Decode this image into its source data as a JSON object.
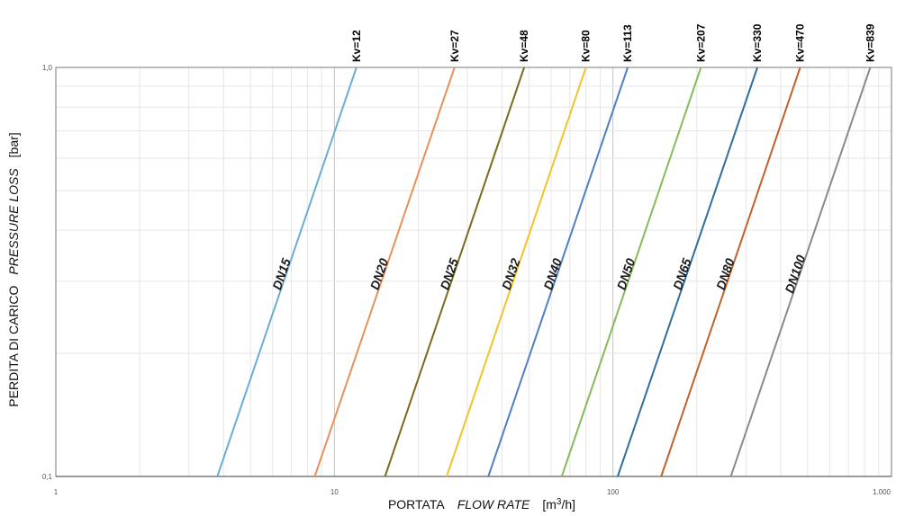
{
  "chart_data": {
    "type": "line",
    "title": "",
    "x_scale": "log",
    "y_scale": "log",
    "xlim": [
      1,
      1000
    ],
    "ylim": [
      0.1,
      1.0
    ],
    "grid": true,
    "x_ticks": [
      {
        "value": 1,
        "label": "1"
      },
      {
        "value": 10,
        "label": "10"
      },
      {
        "value": 100,
        "label": "100"
      },
      {
        "value": 1000,
        "label": "1.000"
      }
    ],
    "y_ticks": [
      {
        "value": 0.1,
        "label": "0,1"
      },
      {
        "value": 1.0,
        "label": "1,0"
      }
    ],
    "xlabel": {
      "prefix": "PORTATA",
      "italic": "FLOW RATE",
      "unit_pre": "[m",
      "unit_sup": "3",
      "unit_post": "/h]"
    },
    "ylabel": {
      "prefix": "PERDITA DI CARICO",
      "italic": "PRESSURE LOSS",
      "unit": "[bar]"
    },
    "series": [
      {
        "name": "DN15",
        "kv_label": "Kv=12",
        "kv": 12,
        "color": "#6aaed6",
        "points": [
          [
            3.8,
            0.1
          ],
          [
            12,
            1.0
          ]
        ]
      },
      {
        "name": "DN20",
        "kv_label": "Kv=27",
        "kv": 27,
        "color": "#e8915a",
        "points": [
          [
            8.5,
            0.1
          ],
          [
            27,
            1.0
          ]
        ]
      },
      {
        "name": "DN25",
        "kv_label": "Kv=48",
        "kv": 48,
        "color": "#7a6a1e",
        "points": [
          [
            15.2,
            0.1
          ],
          [
            48,
            1.0
          ]
        ]
      },
      {
        "name": "DN32",
        "kv_label": "Kv=80",
        "kv": 80,
        "color": "#f2c42a",
        "points": [
          [
            25.3,
            0.1
          ],
          [
            80,
            1.0
          ]
        ]
      },
      {
        "name": "DN40",
        "kv_label": "Kv=113",
        "kv": 113,
        "color": "#4f7fc4",
        "points": [
          [
            35.7,
            0.1
          ],
          [
            113,
            1.0
          ]
        ]
      },
      {
        "name": "DN50",
        "kv_label": "Kv=207",
        "kv": 207,
        "color": "#86bb5a",
        "points": [
          [
            65.5,
            0.1
          ],
          [
            207,
            1.0
          ]
        ]
      },
      {
        "name": "DN65",
        "kv_label": "Kv=330",
        "kv": 330,
        "color": "#2f6e9e",
        "points": [
          [
            104,
            0.1
          ],
          [
            330,
            1.0
          ]
        ]
      },
      {
        "name": "DN80",
        "kv_label": "Kv=470",
        "kv": 470,
        "color": "#c0622a",
        "points": [
          [
            149,
            0.1
          ],
          [
            470,
            1.0
          ]
        ]
      },
      {
        "name": "DN100",
        "kv_label": "Kv=839",
        "kv": 839,
        "color": "#8a8a8a",
        "points": [
          [
            265,
            0.1
          ],
          [
            839,
            1.0
          ]
        ]
      }
    ]
  }
}
